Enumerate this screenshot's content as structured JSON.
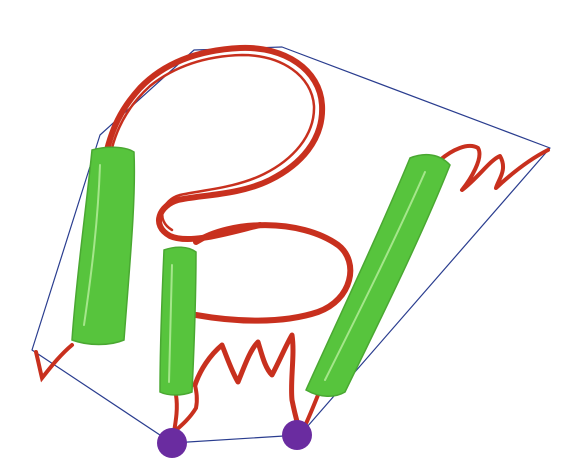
{
  "colors": {
    "background": "#ffffff",
    "hull_outline": "#2a3d8f",
    "curve": "#c8301e",
    "bar_fill": "#57c43d",
    "bar_highlight": "#b9ef9f",
    "endpoint": "#6a2ca0"
  },
  "shapes": {
    "hull": "hull-outline",
    "curves": [
      "top-loop-curve",
      "middle-loop-curve",
      "left-tail-curve",
      "middle-squiggle-curve",
      "right-squiggle-curve",
      "bottom-left-tail-curve"
    ],
    "bars": [
      "left-bar",
      "middle-bar",
      "right-bar"
    ],
    "endpoints": [
      "endpoint-left",
      "endpoint-right"
    ]
  }
}
